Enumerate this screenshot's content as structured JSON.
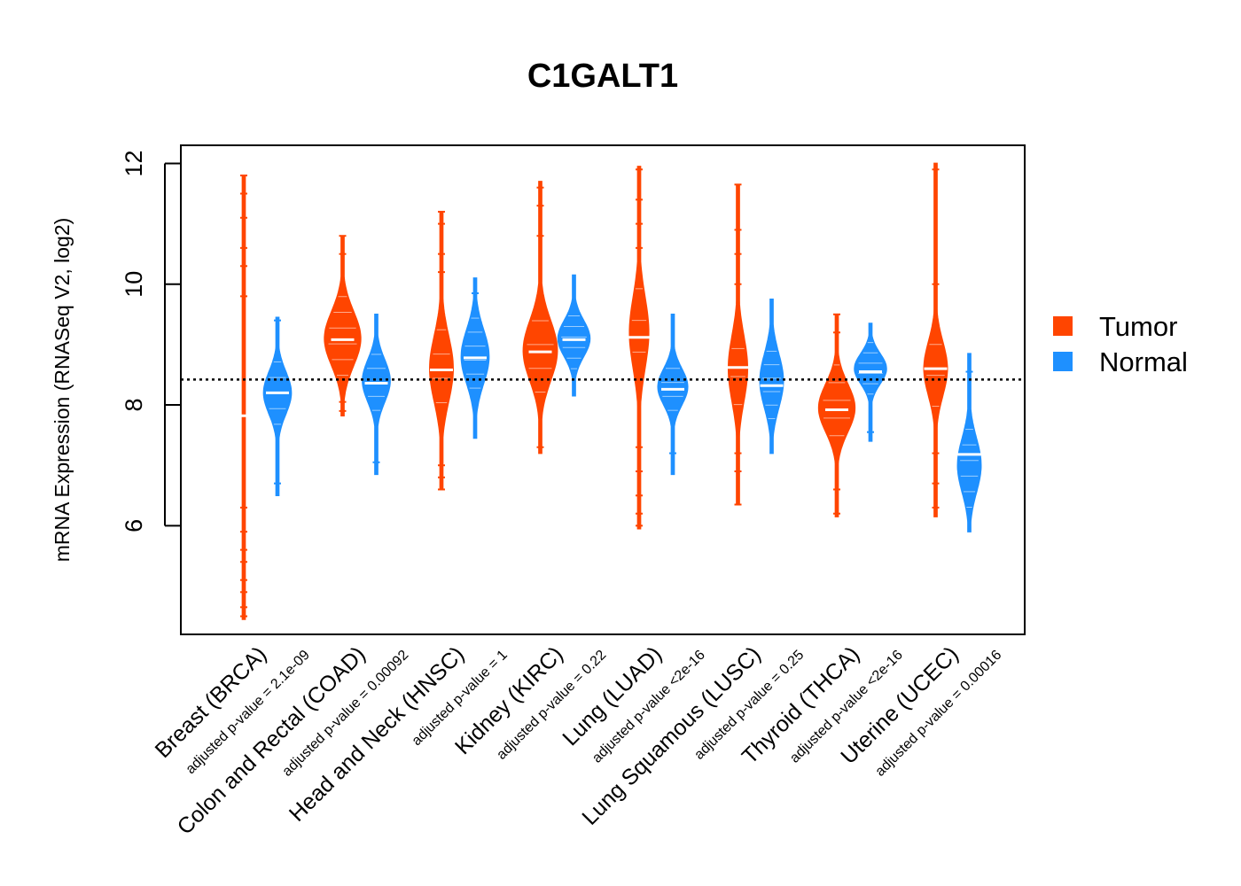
{
  "chart_data": {
    "type": "violin",
    "title": "C1GALT1",
    "ylabel": "mRNA Expression (RNASeq V2, log2)",
    "xlabel": "",
    "ylim": [
      4.2,
      12.3
    ],
    "yticks": [
      6,
      8,
      10,
      12
    ],
    "reference_line": 8.42,
    "grid": false,
    "legend_position": "right",
    "colors": {
      "Tumor": "#FF4500",
      "Normal": "#1E90FF"
    },
    "legend": [
      "Tumor",
      "Normal"
    ],
    "categories": [
      {
        "label": "Breast (BRCA)",
        "pvalue": "adjusted p-value = 2.1e-09"
      },
      {
        "label": "Colon and Rectal (COAD)",
        "pvalue": "adjusted p-value = 0.00092"
      },
      {
        "label": "Head and Neck (HNSC)",
        "pvalue": "adjusted p-value = 1"
      },
      {
        "label": "Kidney (KIRC)",
        "pvalue": "adjusted p-value = 0.22"
      },
      {
        "label": "Lung (LUAD)",
        "pvalue": "adjusted p-value <2e-16"
      },
      {
        "label": "Lung Squamous (LUSC)",
        "pvalue": "adjusted p-value = 0.25"
      },
      {
        "label": "Thyroid (THCA)",
        "pvalue": "adjusted p-value <2e-16"
      },
      {
        "label": "Uterine (UCEC)",
        "pvalue": "adjusted p-value = 0.00016"
      }
    ],
    "series": [
      {
        "name": "Tumor",
        "violins": [
          {
            "min": 4.45,
            "max": 11.8,
            "median": 7.82,
            "peak": 7.9,
            "spread": 0.9,
            "width": 0.05,
            "outliers": [
              4.5,
              4.65,
              4.9,
              5.1,
              5.4,
              5.6,
              5.9,
              6.3,
              9.8,
              10.3,
              10.6,
              11.1,
              11.5,
              11.8
            ]
          },
          {
            "min": 7.82,
            "max": 10.8,
            "median": 9.08,
            "peak": 9.1,
            "spread": 0.45,
            "width": 0.85,
            "outliers": [
              7.9,
              8.05,
              10.5,
              10.8
            ]
          },
          {
            "min": 6.6,
            "max": 11.2,
            "median": 8.58,
            "peak": 8.6,
            "spread": 0.55,
            "width": 0.55,
            "outliers": [
              6.6,
              6.8,
              7.0,
              10.2,
              10.5,
              11.0,
              11.2
            ]
          },
          {
            "min": 7.2,
            "max": 11.7,
            "median": 8.88,
            "peak": 8.9,
            "spread": 0.5,
            "width": 0.8,
            "outliers": [
              7.3,
              10.8,
              11.3,
              11.6
            ]
          },
          {
            "min": 5.95,
            "max": 11.95,
            "median": 9.12,
            "peak": 9.2,
            "spread": 0.6,
            "width": 0.45,
            "outliers": [
              6.0,
              6.2,
              6.5,
              6.9,
              7.3,
              10.6,
              11.0,
              11.4,
              11.9
            ]
          },
          {
            "min": 6.35,
            "max": 11.65,
            "median": 8.62,
            "peak": 8.6,
            "spread": 0.55,
            "width": 0.45,
            "outliers": [
              6.35,
              6.9,
              7.2,
              10.0,
              10.5,
              10.9,
              11.65
            ]
          },
          {
            "min": 6.15,
            "max": 9.5,
            "median": 7.92,
            "peak": 7.95,
            "spread": 0.4,
            "width": 0.85,
            "outliers": [
              6.2,
              6.6,
              9.2,
              9.5
            ]
          },
          {
            "min": 6.15,
            "max": 12.0,
            "median": 8.6,
            "peak": 8.6,
            "spread": 0.45,
            "width": 0.55,
            "outliers": [
              6.3,
              6.7,
              7.2,
              10.0,
              11.9
            ]
          }
        ]
      },
      {
        "name": "Normal",
        "violins": [
          {
            "min": 6.5,
            "max": 9.45,
            "median": 8.2,
            "peak": 8.2,
            "spread": 0.35,
            "width": 0.65,
            "outliers": [
              6.7,
              9.4
            ]
          },
          {
            "min": 6.85,
            "max": 9.5,
            "median": 8.36,
            "peak": 8.4,
            "spread": 0.35,
            "width": 0.65,
            "outliers": [
              7.05
            ]
          },
          {
            "min": 7.45,
            "max": 10.1,
            "median": 8.78,
            "peak": 8.8,
            "spread": 0.45,
            "width": 0.65,
            "outliers": [
              9.85
            ]
          },
          {
            "min": 8.15,
            "max": 10.15,
            "median": 9.08,
            "peak": 9.1,
            "spread": 0.3,
            "width": 0.75,
            "outliers": []
          },
          {
            "min": 6.85,
            "max": 9.5,
            "median": 8.26,
            "peak": 8.3,
            "spread": 0.3,
            "width": 0.7,
            "outliers": [
              7.2
            ]
          },
          {
            "min": 7.2,
            "max": 9.75,
            "median": 8.32,
            "peak": 8.4,
            "spread": 0.45,
            "width": 0.55,
            "outliers": []
          },
          {
            "min": 7.4,
            "max": 9.35,
            "median": 8.55,
            "peak": 8.6,
            "spread": 0.25,
            "width": 0.75,
            "outliers": [
              7.55
            ]
          },
          {
            "min": 5.9,
            "max": 8.85,
            "median": 7.18,
            "peak": 7.0,
            "spread": 0.45,
            "width": 0.55,
            "outliers": [
              8.55
            ]
          }
        ]
      }
    ]
  }
}
